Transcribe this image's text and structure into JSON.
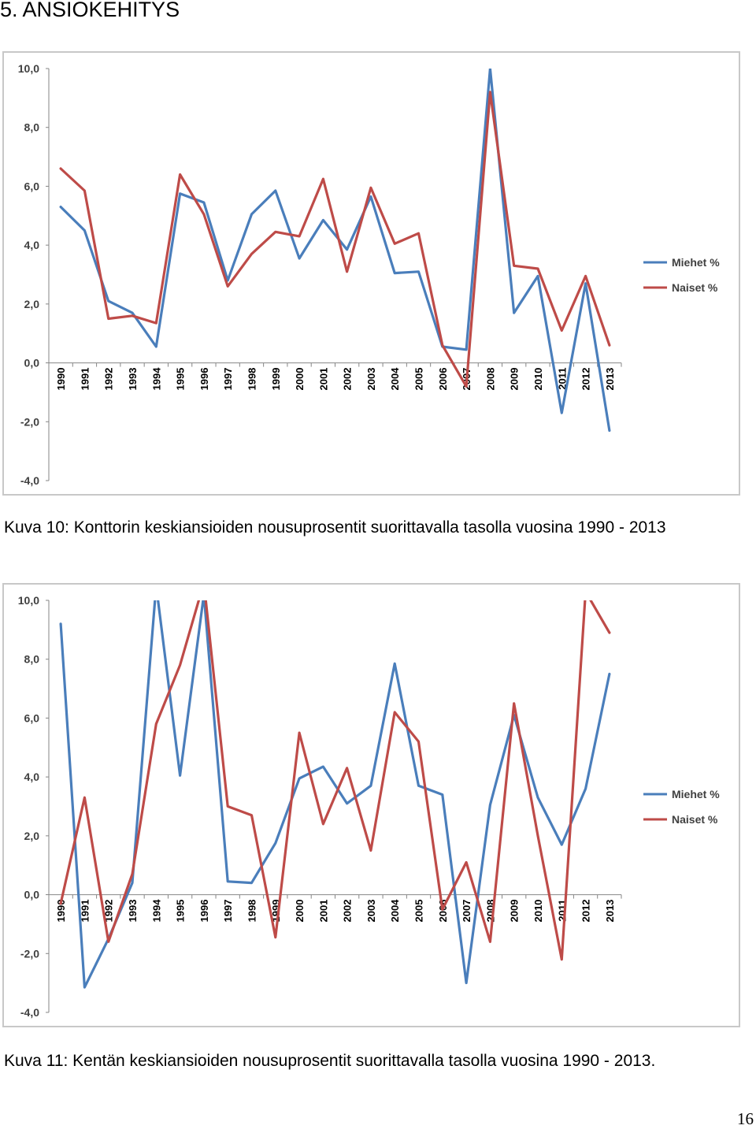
{
  "heading": "5. ANSIOKEHITYS",
  "captions": [
    "Kuva 10: Konttorin keskiansioiden nousuprosentit suorittavalla tasolla vuosina 1990 - 2013",
    "Kuva 11: Kentän keskiansioiden nousuprosentit suorittavalla tasolla vuosina 1990 - 2013."
  ],
  "page_number": "16",
  "colors": {
    "miehet": "#4a7ebb",
    "naiset": "#be4b48",
    "axis": "#868686"
  },
  "chart_data": [
    {
      "type": "line",
      "categories": [
        "1990",
        "1991",
        "1992",
        "1993",
        "1994",
        "1995",
        "1996",
        "1997",
        "1998",
        "1999",
        "2000",
        "2001",
        "2002",
        "2003",
        "2004",
        "2005",
        "2006",
        "2007",
        "2008",
        "2009",
        "2010",
        "2011",
        "2012",
        "2013"
      ],
      "yticks": [
        "10,0",
        "8,0",
        "6,0",
        "4,0",
        "2,0",
        "0,0",
        "-2,0",
        "-4,0"
      ],
      "ylim": [
        -4,
        10
      ],
      "legend_position": "right",
      "series": [
        {
          "name": "Miehet %",
          "color": "#4a7ebb",
          "values": [
            5.3,
            4.5,
            2.1,
            1.7,
            0.55,
            5.75,
            5.45,
            2.8,
            5.05,
            5.85,
            3.55,
            4.85,
            3.85,
            5.65,
            3.05,
            3.1,
            0.55,
            0.45,
            10.0,
            1.7,
            2.95,
            -1.7,
            2.7,
            -2.3
          ]
        },
        {
          "name": "Naiset %",
          "color": "#be4b48",
          "values": [
            6.6,
            5.85,
            1.5,
            1.6,
            1.35,
            6.4,
            5.05,
            2.6,
            3.7,
            4.45,
            4.3,
            6.25,
            3.1,
            5.95,
            4.05,
            4.4,
            0.6,
            -0.8,
            9.2,
            3.3,
            3.2,
            1.1,
            2.95,
            0.6
          ]
        }
      ]
    },
    {
      "type": "line",
      "categories": [
        "1990",
        "1991",
        "1992",
        "1993",
        "1994",
        "1995",
        "1996",
        "1997",
        "1998",
        "1999",
        "2000",
        "2001",
        "2002",
        "2003",
        "2004",
        "2005",
        "2006",
        "2007",
        "2008",
        "2009",
        "2010",
        "2011",
        "2012",
        "2013"
      ],
      "yticks": [
        "10,0",
        "8,0",
        "6,0",
        "4,0",
        "2,0",
        "0,0",
        "-2,0",
        "-4,0"
      ],
      "ylim": [
        -4,
        10
      ],
      "legend_position": "right",
      "series": [
        {
          "name": "Miehet %",
          "color": "#4a7ebb",
          "values": [
            9.2,
            -3.15,
            -1.5,
            0.4,
            10.5,
            4.05,
            10.2,
            0.45,
            0.4,
            1.75,
            3.95,
            4.35,
            3.1,
            3.7,
            7.85,
            3.7,
            3.4,
            -3.0,
            3.05,
            6.1,
            3.3,
            1.7,
            3.6,
            7.5
          ]
        },
        {
          "name": "Naiset %",
          "color": "#be4b48",
          "values": [
            -0.3,
            3.3,
            -1.6,
            0.7,
            5.8,
            7.8,
            10.6,
            3.0,
            2.7,
            -1.45,
            5.5,
            2.4,
            4.3,
            1.5,
            6.2,
            5.2,
            -0.5,
            1.1,
            -1.6,
            6.5,
            2.0,
            -2.2,
            10.3,
            8.9
          ]
        }
      ]
    }
  ]
}
